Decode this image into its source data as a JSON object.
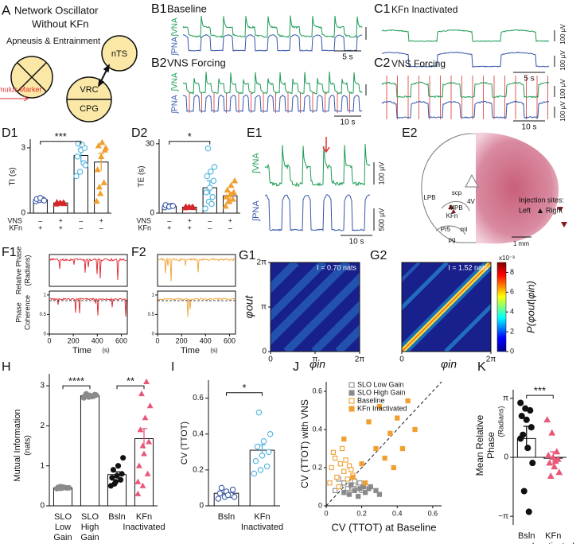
{
  "panel_a": {
    "label": "A",
    "title": "Network Oscillator",
    "subtitle": "Without KFn",
    "caption": "Apneusis & Entrainment",
    "nodes": [
      "nTS",
      "VRC",
      "CPG"
    ]
  },
  "panel_b1": {
    "label": "B1",
    "title": "Baseline",
    "traces": [
      "∫VNA",
      "∫PNA"
    ],
    "time_scale": "5 s"
  },
  "panel_b2": {
    "label": "B2",
    "title": "VNS Forcing",
    "traces": [
      "∫VNA",
      "∫PNA"
    ],
    "marker": "Stimulus Marker",
    "time_scale": "10 s"
  },
  "panel_c1": {
    "label": "C1",
    "title": "KFn Inactivated",
    "amp_scales": [
      "100 µV",
      "100 µV"
    ],
    "time_scale": "5 s"
  },
  "panel_c2": {
    "label": "C2",
    "title": "VNS Forcing",
    "amp_scales": [
      "100 µV",
      "100 µV"
    ],
    "time_scale": "10 s"
  },
  "panel_d1": {
    "label": "D1",
    "ylabel": "TI (s)",
    "ylim": [
      0,
      3.4
    ],
    "yticks": [
      0,
      3
    ],
    "values": [
      0.62,
      0.47,
      2.65,
      2.35
    ],
    "errors": [
      0.06,
      0.03,
      0.3,
      0.4
    ],
    "colors": [
      "#3b5ba9",
      "#d62728",
      "#4fb3e0",
      "#f0a030"
    ],
    "markers": [
      "circle",
      "triangle",
      "circle",
      "triangle"
    ],
    "filled": [
      false,
      true,
      false,
      true
    ],
    "points": [
      [
        0.55,
        0.6,
        0.62,
        0.65,
        0.7,
        0.58
      ],
      [
        0.42,
        0.45,
        0.48,
        0.5,
        0.46,
        0.44
      ],
      [
        1.7,
        1.9,
        2.3,
        2.6,
        2.9,
        3.0,
        3.2,
        3.15,
        2.2
      ],
      [
        0.55,
        0.9,
        1.4,
        2.0,
        2.6,
        2.9,
        3.1,
        3.25,
        3.0,
        1.2
      ]
    ],
    "rows": [
      {
        "name": "VNS",
        "marks": [
          "–",
          "+",
          "–",
          "+"
        ]
      },
      {
        "name": "KFn",
        "marks": [
          "+",
          "+",
          "–",
          "–"
        ]
      }
    ],
    "significance": "***"
  },
  "panel_d2": {
    "label": "D2",
    "ylabel": "TE (s)",
    "ylim": [
      0,
      32
    ],
    "yticks": [
      0,
      30
    ],
    "values": [
      3,
      2.6,
      11,
      7.5
    ],
    "errors": [
      0.4,
      0.3,
      3,
      1.6
    ],
    "colors": [
      "#3b5ba9",
      "#d62728",
      "#4fb3e0",
      "#f0a030"
    ],
    "markers": [
      "circle",
      "triangle",
      "circle",
      "triangle"
    ],
    "filled": [
      false,
      true,
      false,
      true
    ],
    "points": [
      [
        2.5,
        3,
        3.2,
        3.5,
        2.8,
        3.1
      ],
      [
        2.3,
        2.5,
        2.7,
        2.8,
        2.6,
        2.4
      ],
      [
        2,
        5,
        7,
        9,
        11,
        14,
        16,
        18,
        20,
        28,
        4
      ],
      [
        3,
        5,
        6,
        7,
        8,
        9,
        10,
        12,
        14,
        5
      ]
    ],
    "rows": [
      {
        "name": "VNS",
        "marks": [
          "–",
          "+",
          "–",
          "+"
        ]
      },
      {
        "name": "KFn",
        "marks": [
          "+",
          "+",
          "–",
          "–"
        ]
      }
    ],
    "significance": "*"
  },
  "panel_e1": {
    "label": "E1",
    "traces": [
      "∫VNA",
      "∫PNA"
    ],
    "amp_scales": [
      "100 µV",
      "500 µV"
    ],
    "time_scale": "10 s"
  },
  "panel_e2": {
    "label": "E2",
    "regions": [
      "4V",
      "scp",
      "LPB",
      "MPB",
      "KFn",
      "Pr5",
      "ml",
      "pg"
    ],
    "scale": "1 mm",
    "legend_title": "Injection sites:",
    "legend": [
      "Left",
      "Right"
    ]
  },
  "panel_f1": {
    "label": "F1",
    "ylabels": [
      "Relative Phase",
      "(Radians)",
      "Phase",
      "Coherence"
    ],
    "xlabel": "Time",
    "xunit": "(s)",
    "xlim": [
      0,
      650
    ],
    "xticks": [
      0,
      200,
      400,
      600
    ],
    "coh_lim": [
      0,
      1.1
    ],
    "coh_ticks": [
      0,
      0.5,
      1
    ],
    "color": "#e0202a"
  },
  "panel_f2": {
    "label": "F2",
    "xlabel": "Time",
    "xunit": "(s)",
    "xlim": [
      0,
      650
    ],
    "xticks": [
      0,
      200,
      400,
      600
    ],
    "coh_lim": [
      0,
      1.1
    ],
    "coh_ticks": [
      0,
      0.5,
      1
    ],
    "color": "#f0a030"
  },
  "panel_g1": {
    "label": "G1",
    "annotation": "I = 0.70 nats",
    "xlabel": "φin",
    "ylabel": "φout",
    "lim": [
      0,
      6.28318
    ],
    "ticks": [
      0,
      {
        "value": 3.14159,
        "label": "π"
      },
      {
        "value": 6.28318,
        "label": "2π"
      }
    ]
  },
  "panel_g2": {
    "label": "G2",
    "annotation": "I = 1.52 nats",
    "xlabel": "φin",
    "lim": [
      0,
      6.28318
    ],
    "ticks": [
      0,
      {
        "value": 6.28318,
        "label": "2π"
      }
    ],
    "clabel": "P(φout|φin)",
    "clim": [
      0,
      9
    ],
    "cticks": [
      0,
      2,
      4,
      6,
      8
    ],
    "cscale": "x10⁻³"
  },
  "panel_h": {
    "label": "H",
    "ylabel": "Mutual Information",
    "yunit": "(nats)",
    "ylim": [
      0,
      3.3
    ],
    "yticks": [
      0,
      1,
      2,
      3
    ],
    "categories": [
      [
        "SLO",
        "Low",
        "Gain"
      ],
      [
        "SLO",
        "High",
        "Gain"
      ],
      [
        "Bsln"
      ],
      [
        "KFn",
        "Inactivated"
      ]
    ],
    "values": [
      0.45,
      2.75,
      0.78,
      1.68
    ],
    "errors": [
      0.01,
      0.01,
      0.07,
      0.25
    ],
    "colors": [
      "#8a8a8a",
      "#8a8a8a",
      "#111111",
      "#e9587a"
    ],
    "markers": [
      "circle",
      "circle",
      "circle",
      "triangle"
    ],
    "filled": [
      true,
      true,
      true,
      true
    ],
    "points": [
      [
        0.43,
        0.44,
        0.45,
        0.46,
        0.47,
        0.45,
        0.44,
        0.46,
        0.45,
        0.48
      ],
      [
        2.7,
        2.72,
        2.74,
        2.75,
        2.76,
        2.78,
        2.8,
        2.73,
        2.77,
        2.75
      ],
      [
        0.5,
        0.6,
        0.65,
        0.7,
        0.75,
        0.8,
        0.9,
        1.0,
        1.2,
        0.55
      ],
      [
        0.3,
        0.5,
        0.8,
        1.0,
        1.3,
        1.6,
        1.9,
        2.2,
        2.5,
        2.8,
        3.1,
        0.6,
        1.5
      ]
    ],
    "significance": [
      "****",
      "**"
    ]
  },
  "panel_i": {
    "label": "I",
    "ylabel": "CV (TTOT)",
    "ylim": [
      0,
      0.7
    ],
    "yticks": [
      0,
      0.2,
      0.4,
      0.6
    ],
    "categories": [
      [
        "Bsln"
      ],
      [
        "KFn",
        "Inactivated"
      ]
    ],
    "values": [
      0.07,
      0.31
    ],
    "errors": [
      0.01,
      0.03
    ],
    "colors": [
      "#3b5ba9",
      "#4fb3e0"
    ],
    "markers": [
      "circle",
      "circle"
    ],
    "filled": [
      false,
      false
    ],
    "points": [
      [
        0.04,
        0.05,
        0.06,
        0.07,
        0.08,
        0.09,
        0.1,
        0.06,
        0.05
      ],
      [
        0.18,
        0.2,
        0.22,
        0.25,
        0.28,
        0.3,
        0.33,
        0.36,
        0.4,
        0.52
      ]
    ],
    "significance": "*"
  },
  "panel_j": {
    "label": "J",
    "xlabel": "CV (TTOT) at Baseline",
    "ylabel": "CV (TTOT) with VNS",
    "xlim": [
      0,
      0.65
    ],
    "ylim": [
      0,
      0.65
    ],
    "xticks": [
      0,
      0.2,
      0.4,
      0.6
    ],
    "yticks": [
      0,
      0.2,
      0.4,
      0.6
    ],
    "series": [
      {
        "name": "SLO Low Gain",
        "color": "#8a8a8a",
        "filled": false,
        "x": [
          0.05,
          0.08,
          0.1,
          0.12,
          0.14,
          0.16,
          0.18,
          0.2,
          0.07,
          0.11,
          0.15,
          0.19
        ],
        "y": [
          0.08,
          0.1,
          0.12,
          0.09,
          0.11,
          0.13,
          0.1,
          0.08,
          0.14,
          0.07,
          0.09,
          0.12
        ]
      },
      {
        "name": "SLO High Gain",
        "color": "#8a8a8a",
        "filled": true,
        "x": [
          0.1,
          0.13,
          0.16,
          0.19,
          0.22,
          0.25,
          0.28,
          0.3,
          0.14,
          0.18,
          0.21,
          0.24
        ],
        "y": [
          0.07,
          0.06,
          0.08,
          0.09,
          0.07,
          0.1,
          0.08,
          0.06,
          0.11,
          0.05,
          0.1,
          0.09
        ]
      },
      {
        "name": "Baseline",
        "color": "#f0a030",
        "filled": false,
        "x": [
          0.02,
          0.03,
          0.05,
          0.06,
          0.08,
          0.09,
          0.1,
          0.12,
          0.13,
          0.15,
          0.04,
          0.07,
          0.11,
          0.14
        ],
        "y": [
          0.12,
          0.2,
          0.25,
          0.15,
          0.22,
          0.3,
          0.18,
          0.14,
          0.21,
          0.16,
          0.28,
          0.1,
          0.24,
          0.19
        ]
      },
      {
        "name": "KFn Inactivated",
        "color": "#f0a030",
        "filled": true,
        "x": [
          0.1,
          0.15,
          0.2,
          0.24,
          0.28,
          0.3,
          0.33,
          0.36,
          0.4,
          0.43,
          0.46,
          0.5,
          0.22,
          0.38
        ],
        "y": [
          0.35,
          0.15,
          0.22,
          0.44,
          0.3,
          0.52,
          0.25,
          0.38,
          0.46,
          0.3,
          0.55,
          0.4,
          0.12,
          0.2
        ]
      }
    ]
  },
  "panel_k": {
    "label": "K",
    "ylabel": "Mean Relative",
    "ylabel2": "Phase",
    "yunit": "(Radians)",
    "ylim": [
      -3.6,
      3.6
    ],
    "yticks": [
      {
        "value": -3.14159,
        "label": "−π"
      },
      0,
      {
        "value": 3.14159,
        "label": "π"
      }
    ],
    "categories": [
      [
        "Bsln"
      ],
      [
        "KFn",
        "Inactivated"
      ]
    ],
    "values": [
      1.0,
      -0.05
    ],
    "errors": [
      0.65,
      0.35
    ],
    "colors": [
      "#111111",
      "#e9587a"
    ],
    "markers": [
      "circle",
      "triangle"
    ],
    "filled": [
      true,
      true
    ],
    "points": [
      [
        2.9,
        2.6,
        2.5,
        2.2,
        2.0,
        1.6,
        1.2,
        0.5,
        -0.3,
        -1.8,
        -2.9,
        1.0
      ],
      [
        2.0,
        1.3,
        0.3,
        0.1,
        0.0,
        -0.1,
        -0.3,
        -0.5,
        -0.8,
        -1.0,
        -0.2
      ]
    ],
    "significance": "***"
  }
}
